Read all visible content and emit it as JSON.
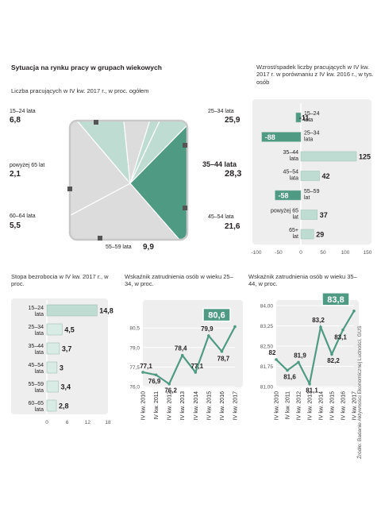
{
  "header": {
    "title": "Sytuacja na rynku pracy w grupach wiekowych",
    "pie_subtitle": "Liczba pracujących w IV kw. 2017 r., w proc. ogółem",
    "change_subtitle": "Wzrost/spadek liczby pracujących w IV kw. 2017 r. w porównaniu z IV kw. 2016 r., w tys. osób",
    "unemp_subtitle": "Stopa bezrobocia w IV kw. 2017 r., w proc.",
    "emp2534_subtitle": "Wskaźnik zatrudnienia osób w wieku 25–34, w proc.",
    "emp3544_subtitle": "Wskaźnik zatrudnienia osób w wieku 35–44, w proc."
  },
  "source": "Źródło: Badanie Aktywności Ekonomicznej Ludności, GUS",
  "colors": {
    "accent": "#4e9a83",
    "light": "#bfdcd2",
    "gray": "#dcdcdc",
    "panel": "#eeeeee",
    "text": "#231f20"
  },
  "chart_data": [
    {
      "type": "pie",
      "title": "Liczba pracujących w IV kw. 2017 r., w proc. ogółem",
      "slices": [
        {
          "label": "15–24 lata",
          "value": 6.8
        },
        {
          "label": "25–34 lata",
          "value": 25.9
        },
        {
          "label": "35–44 lata",
          "value": 28.3
        },
        {
          "label": "45–54 lata",
          "value": 21.6
        },
        {
          "label": "55–59 lata",
          "value": 9.9
        },
        {
          "label": "60–64 lata",
          "value": 5.5
        },
        {
          "label": "powyżej 65 lat",
          "value": 2.1
        }
      ]
    },
    {
      "type": "bar",
      "title": "Wzrost/spadek liczby pracujących w IV kw. 2017 r. w porównaniu z IV kw. 2016 r., w tys. osób",
      "categories": [
        "15–24 lata",
        "25–34 lata",
        "35–44 lata",
        "45–54 lata",
        "55–59 lat",
        "powyżej 65 lat",
        "65+ lat"
      ],
      "values": [
        -11,
        -88,
        125,
        42,
        -58,
        37,
        29
      ],
      "xlim": [
        -100,
        150
      ],
      "ticks": [
        "-100",
        "-50",
        "0",
        "50",
        "100",
        "150"
      ]
    },
    {
      "type": "bar",
      "title": "Stopa bezrobocia w IV kw. 2017 r., w proc.",
      "categories": [
        "15–24 lata",
        "25–34 lata",
        "35–44 lata",
        "45–54 lata",
        "55–59 lata",
        "60–65 lata"
      ],
      "values": [
        14.8,
        4.5,
        3.7,
        3,
        3.4,
        2.8
      ],
      "labels": [
        "14,8",
        "4,5",
        "3,7",
        "3",
        "3,4",
        "2,8"
      ],
      "xlim": [
        0,
        18
      ],
      "ticks": [
        "0",
        "6",
        "12",
        "18"
      ]
    },
    {
      "type": "line",
      "title": "Wskaźnik zatrudnienia osób w wieku 25–34, w proc.",
      "x": [
        "IV kw. 2010",
        "IV kw. 2011",
        "IV kw. 2012",
        "IV kw. 2013",
        "IV kw. 2014",
        "IV kw. 2015",
        "IV kw. 2016",
        "IV kw. 2017"
      ],
      "values": [
        77.1,
        76.9,
        76.2,
        78.4,
        77.1,
        79.9,
        78.7,
        80.6
      ],
      "labels": [
        "77,1",
        "76,9",
        "76,2",
        "78,4",
        "77,1",
        "79,9",
        "78,7",
        "80,6"
      ],
      "ylim": [
        76.0,
        81.0
      ],
      "yticks": [
        "76,0",
        "77,5",
        "79,0",
        "80,5"
      ]
    },
    {
      "type": "line",
      "title": "Wskaźnik zatrudnienia osób w wieku 35–44, w proc.",
      "x": [
        "IV kw. 2010",
        "IV kw. 2011",
        "IV kw. 2012",
        "IV kw. 2013",
        "IV kw. 2014",
        "IV kw. 2015",
        "IV kw. 2016",
        "IV kw. 2017"
      ],
      "values": [
        82,
        81.6,
        81.9,
        81.1,
        83.2,
        82.2,
        83.1,
        83.8
      ],
      "labels": [
        "82",
        "81,6",
        "81,9",
        "81,1",
        "83,2",
        "82,2",
        "83,1",
        "83,8"
      ],
      "ylim": [
        81.0,
        84.0
      ],
      "yticks": [
        "81,00",
        "81,75",
        "82,50",
        "83,25",
        "84,00"
      ]
    }
  ]
}
